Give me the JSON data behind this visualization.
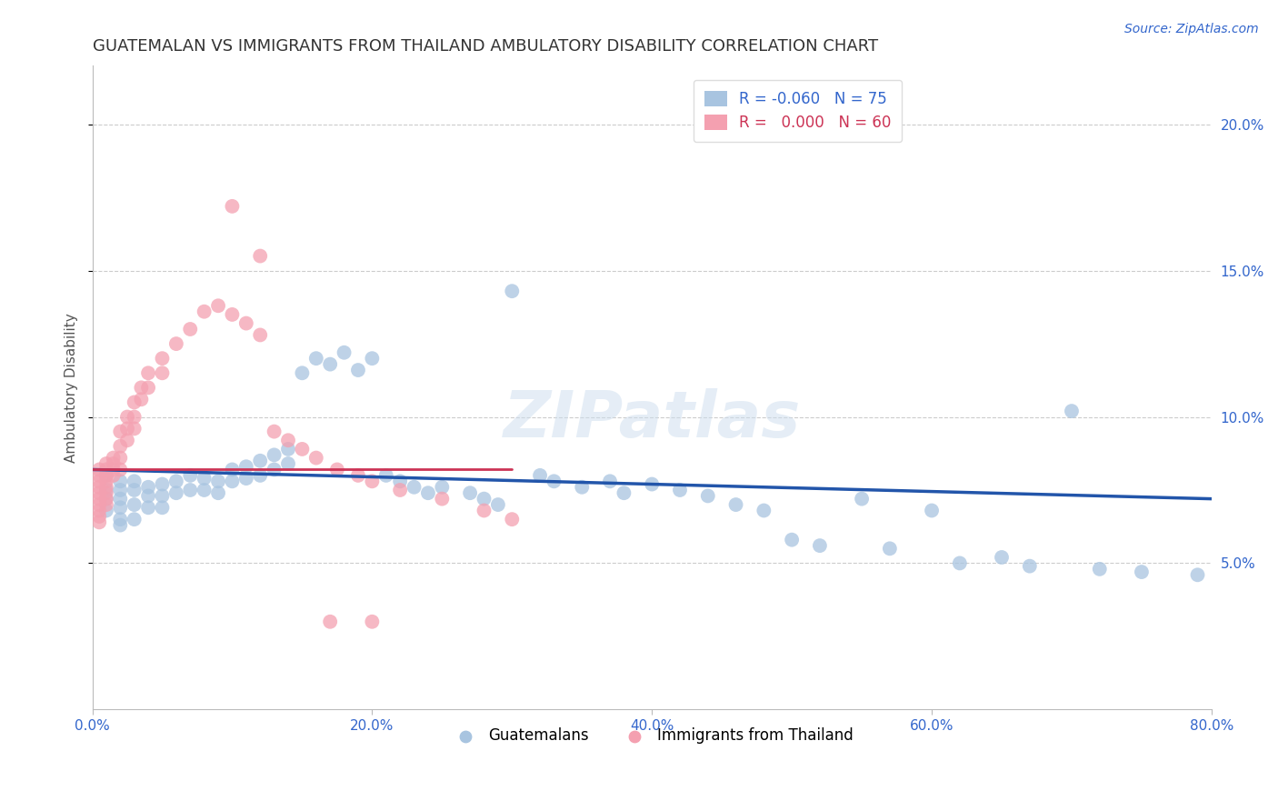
{
  "title": "GUATEMALAN VS IMMIGRANTS FROM THAILAND AMBULATORY DISABILITY CORRELATION CHART",
  "source": "Source: ZipAtlas.com",
  "ylabel": "Ambulatory Disability",
  "legend_label1": "Guatemalans",
  "legend_label2": "Immigrants from Thailand",
  "r1": -0.06,
  "n1": 75,
  "r2": 0.0,
  "n2": 60,
  "color_blue": "#a8c4e0",
  "color_pink": "#f4a0b0",
  "line_blue": "#2255aa",
  "line_pink": "#cc3355",
  "xlim": [
    0.0,
    0.8
  ],
  "ylim": [
    0.0,
    0.22
  ],
  "yticks": [
    0.05,
    0.1,
    0.15,
    0.2
  ],
  "ytick_labels": [
    "5.0%",
    "10.0%",
    "15.0%",
    "20.0%"
  ],
  "xticks": [
    0.0,
    0.2,
    0.4,
    0.6,
    0.8
  ],
  "xtick_labels": [
    "0.0%",
    "20.0%",
    "40.0%",
    "60.0%",
    "80.0%"
  ],
  "blue_x": [
    0.01,
    0.01,
    0.01,
    0.01,
    0.02,
    0.02,
    0.02,
    0.02,
    0.02,
    0.02,
    0.03,
    0.03,
    0.03,
    0.03,
    0.04,
    0.04,
    0.04,
    0.05,
    0.05,
    0.05,
    0.06,
    0.06,
    0.07,
    0.07,
    0.08,
    0.08,
    0.09,
    0.09,
    0.1,
    0.1,
    0.11,
    0.11,
    0.12,
    0.12,
    0.13,
    0.13,
    0.14,
    0.14,
    0.15,
    0.16,
    0.17,
    0.18,
    0.19,
    0.2,
    0.21,
    0.22,
    0.23,
    0.24,
    0.25,
    0.27,
    0.28,
    0.29,
    0.3,
    0.32,
    0.33,
    0.35,
    0.37,
    0.38,
    0.4,
    0.42,
    0.44,
    0.46,
    0.48,
    0.5,
    0.52,
    0.55,
    0.57,
    0.6,
    0.62,
    0.65,
    0.67,
    0.7,
    0.72,
    0.75,
    0.79
  ],
  "blue_y": [
    0.08,
    0.075,
    0.072,
    0.068,
    0.078,
    0.075,
    0.072,
    0.069,
    0.065,
    0.063,
    0.078,
    0.075,
    0.07,
    0.065,
    0.076,
    0.073,
    0.069,
    0.077,
    0.073,
    0.069,
    0.078,
    0.074,
    0.08,
    0.075,
    0.079,
    0.075,
    0.078,
    0.074,
    0.082,
    0.078,
    0.083,
    0.079,
    0.085,
    0.08,
    0.087,
    0.082,
    0.089,
    0.084,
    0.115,
    0.12,
    0.118,
    0.122,
    0.116,
    0.12,
    0.08,
    0.078,
    0.076,
    0.074,
    0.076,
    0.074,
    0.072,
    0.07,
    0.143,
    0.08,
    0.078,
    0.076,
    0.078,
    0.074,
    0.077,
    0.075,
    0.073,
    0.07,
    0.068,
    0.058,
    0.056,
    0.072,
    0.055,
    0.068,
    0.05,
    0.052,
    0.049,
    0.102,
    0.048,
    0.047,
    0.046
  ],
  "pink_x": [
    0.005,
    0.005,
    0.005,
    0.005,
    0.005,
    0.005,
    0.005,
    0.005,
    0.005,
    0.005,
    0.01,
    0.01,
    0.01,
    0.01,
    0.01,
    0.01,
    0.01,
    0.01,
    0.015,
    0.015,
    0.015,
    0.015,
    0.02,
    0.02,
    0.02,
    0.02,
    0.025,
    0.025,
    0.025,
    0.03,
    0.03,
    0.03,
    0.035,
    0.035,
    0.04,
    0.04,
    0.05,
    0.05,
    0.06,
    0.07,
    0.08,
    0.09,
    0.1,
    0.11,
    0.12,
    0.13,
    0.14,
    0.15,
    0.16,
    0.175,
    0.19,
    0.2,
    0.22,
    0.25,
    0.28,
    0.3,
    0.1,
    0.12,
    0.17,
    0.2
  ],
  "pink_y": [
    0.082,
    0.08,
    0.078,
    0.076,
    0.074,
    0.072,
    0.07,
    0.068,
    0.066,
    0.064,
    0.084,
    0.082,
    0.08,
    0.078,
    0.076,
    0.074,
    0.072,
    0.07,
    0.086,
    0.084,
    0.082,
    0.08,
    0.095,
    0.09,
    0.086,
    0.082,
    0.1,
    0.096,
    0.092,
    0.105,
    0.1,
    0.096,
    0.11,
    0.106,
    0.115,
    0.11,
    0.12,
    0.115,
    0.125,
    0.13,
    0.136,
    0.138,
    0.135,
    0.132,
    0.128,
    0.095,
    0.092,
    0.089,
    0.086,
    0.082,
    0.08,
    0.078,
    0.075,
    0.072,
    0.068,
    0.065,
    0.172,
    0.155,
    0.03,
    0.03
  ],
  "background_color": "#ffffff",
  "grid_color": "#cccccc",
  "title_color": "#333333",
  "axis_label_color": "#555555",
  "tick_color_blue": "#3366cc",
  "title_fontsize": 13,
  "label_fontsize": 11,
  "tick_fontsize": 11,
  "legend_fontsize": 12,
  "source_fontsize": 10,
  "blue_line_x": [
    0.0,
    0.8
  ],
  "blue_line_y": [
    0.082,
    0.072
  ],
  "pink_line_x": [
    0.0,
    0.3
  ],
  "pink_line_y": [
    0.082,
    0.082
  ]
}
